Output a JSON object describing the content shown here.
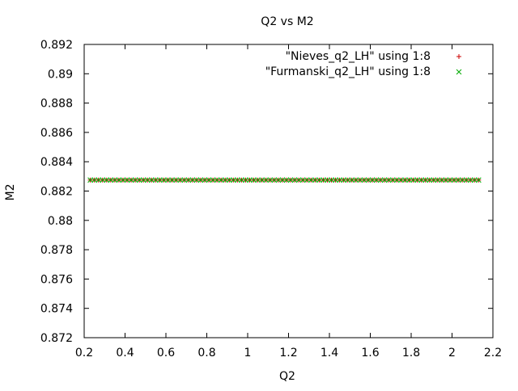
{
  "chart_data": {
    "type": "scatter",
    "title": "Q2 vs M2",
    "xlabel": "Q2",
    "ylabel": "M2",
    "xlim": [
      0.2,
      2.2
    ],
    "ylim": [
      0.872,
      0.892
    ],
    "xticks": [
      "0.2",
      "0.4",
      "0.6",
      "0.8",
      "1",
      "1.2",
      "1.4",
      "1.6",
      "1.8",
      "2",
      "2.2"
    ],
    "yticks": [
      "0.872",
      "0.874",
      "0.876",
      "0.878",
      "0.88",
      "0.882",
      "0.884",
      "0.886",
      "0.888",
      "0.89",
      "0.892"
    ],
    "grid": false,
    "legend_position": "top-right",
    "x": [
      0.23,
      0.25,
      0.27,
      0.29,
      0.31,
      0.33,
      0.35,
      0.37,
      0.39,
      0.41,
      0.43,
      0.45,
      0.47,
      0.49,
      0.51,
      0.53,
      0.55,
      0.57,
      0.59,
      0.61,
      0.63,
      0.65,
      0.67,
      0.69,
      0.71,
      0.73,
      0.75,
      0.77,
      0.79,
      0.81,
      0.83,
      0.85,
      0.87,
      0.89,
      0.91,
      0.93,
      0.95,
      0.97,
      0.99,
      1.01,
      1.03,
      1.05,
      1.07,
      1.09,
      1.11,
      1.13,
      1.15,
      1.17,
      1.19,
      1.21,
      1.23,
      1.25,
      1.27,
      1.29,
      1.31,
      1.33,
      1.35,
      1.37,
      1.39,
      1.41,
      1.43,
      1.45,
      1.47,
      1.49,
      1.51,
      1.53,
      1.55,
      1.57,
      1.59,
      1.61,
      1.63,
      1.65,
      1.67,
      1.69,
      1.71,
      1.73,
      1.75,
      1.77,
      1.79,
      1.81,
      1.83,
      1.85,
      1.87,
      1.89,
      1.91,
      1.93,
      1.95,
      1.97,
      1.99,
      2.01,
      2.03,
      2.05,
      2.07,
      2.09,
      2.11,
      2.13
    ],
    "series": [
      {
        "name": "\"Nieves_q2_LH\" using 1:8",
        "marker": "plus",
        "color": "#cc0000",
        "y_constant": 0.88275
      },
      {
        "name": "\"Furmanski_q2_LH\" using 1:8",
        "marker": "cross",
        "color": "#00aa00",
        "y_constant": 0.88275
      }
    ]
  }
}
